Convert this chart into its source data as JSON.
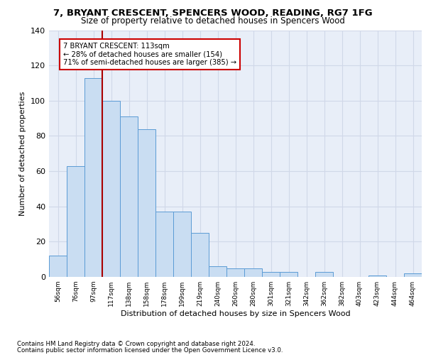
{
  "title1": "7, BRYANT CRESCENT, SPENCERS WOOD, READING, RG7 1FG",
  "title2": "Size of property relative to detached houses in Spencers Wood",
  "xlabel": "Distribution of detached houses by size in Spencers Wood",
  "ylabel": "Number of detached properties",
  "footnote1": "Contains HM Land Registry data © Crown copyright and database right 2024.",
  "footnote2": "Contains public sector information licensed under the Open Government Licence v3.0.",
  "bar_labels": [
    "56sqm",
    "76sqm",
    "97sqm",
    "117sqm",
    "138sqm",
    "158sqm",
    "178sqm",
    "199sqm",
    "219sqm",
    "240sqm",
    "260sqm",
    "280sqm",
    "301sqm",
    "321sqm",
    "342sqm",
    "362sqm",
    "382sqm",
    "403sqm",
    "423sqm",
    "444sqm",
    "464sqm"
  ],
  "bar_values": [
    12,
    63,
    113,
    100,
    91,
    84,
    37,
    37,
    25,
    6,
    5,
    5,
    3,
    3,
    0,
    3,
    0,
    0,
    1,
    0,
    2
  ],
  "bar_color": "#c9ddf2",
  "bar_edge_color": "#5b9bd5",
  "annotation_text": "7 BRYANT CRESCENT: 113sqm\n← 28% of detached houses are smaller (154)\n71% of semi-detached houses are larger (385) →",
  "annotation_box_color": "white",
  "annotation_box_edge": "#cc0000",
  "vline_color": "#aa0000",
  "ylim": [
    0,
    140
  ],
  "yticks": [
    0,
    20,
    40,
    60,
    80,
    100,
    120,
    140
  ],
  "background_color": "#e8eef8",
  "grid_color": "#d0d8e8"
}
